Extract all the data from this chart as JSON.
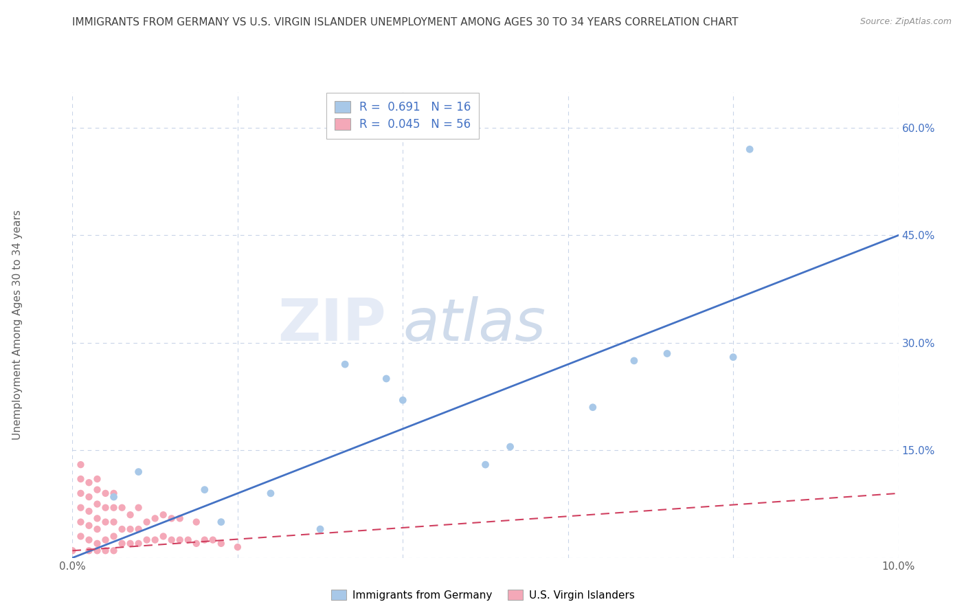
{
  "title": "IMMIGRANTS FROM GERMANY VS U.S. VIRGIN ISLANDER UNEMPLOYMENT AMONG AGES 30 TO 34 YEARS CORRELATION CHART",
  "source": "Source: ZipAtlas.com",
  "ylabel": "Unemployment Among Ages 30 to 34 years",
  "xlim": [
    0.0,
    0.1
  ],
  "ylim": [
    0.0,
    0.65
  ],
  "xticks": [
    0.0,
    0.02,
    0.04,
    0.06,
    0.08,
    0.1
  ],
  "ytick_positions": [
    0.0,
    0.15,
    0.3,
    0.45,
    0.6
  ],
  "yticklabels_right": [
    "",
    "15.0%",
    "30.0%",
    "45.0%",
    "60.0%"
  ],
  "R_blue": 0.691,
  "N_blue": 16,
  "R_pink": 0.045,
  "N_pink": 56,
  "blue_scatter_x": [
    0.005,
    0.008,
    0.016,
    0.018,
    0.024,
    0.03,
    0.033,
    0.038,
    0.04,
    0.05,
    0.053,
    0.063,
    0.068,
    0.072,
    0.08,
    0.082
  ],
  "blue_scatter_y": [
    0.085,
    0.12,
    0.095,
    0.05,
    0.09,
    0.04,
    0.27,
    0.25,
    0.22,
    0.13,
    0.155,
    0.21,
    0.275,
    0.285,
    0.28,
    0.57
  ],
  "pink_scatter_x": [
    0.0,
    0.001,
    0.001,
    0.001,
    0.001,
    0.001,
    0.001,
    0.002,
    0.002,
    0.002,
    0.002,
    0.002,
    0.002,
    0.003,
    0.003,
    0.003,
    0.003,
    0.003,
    0.003,
    0.003,
    0.004,
    0.004,
    0.004,
    0.004,
    0.004,
    0.005,
    0.005,
    0.005,
    0.005,
    0.005,
    0.006,
    0.006,
    0.006,
    0.007,
    0.007,
    0.007,
    0.008,
    0.008,
    0.008,
    0.009,
    0.009,
    0.01,
    0.01,
    0.011,
    0.011,
    0.012,
    0.012,
    0.013,
    0.013,
    0.014,
    0.015,
    0.015,
    0.016,
    0.017,
    0.018,
    0.02
  ],
  "pink_scatter_y": [
    0.01,
    0.03,
    0.05,
    0.07,
    0.09,
    0.11,
    0.13,
    0.01,
    0.025,
    0.045,
    0.065,
    0.085,
    0.105,
    0.01,
    0.02,
    0.04,
    0.055,
    0.075,
    0.095,
    0.11,
    0.01,
    0.025,
    0.05,
    0.07,
    0.09,
    0.01,
    0.03,
    0.05,
    0.07,
    0.09,
    0.02,
    0.04,
    0.07,
    0.02,
    0.04,
    0.06,
    0.02,
    0.04,
    0.07,
    0.025,
    0.05,
    0.025,
    0.055,
    0.03,
    0.06,
    0.025,
    0.055,
    0.025,
    0.055,
    0.025,
    0.02,
    0.05,
    0.025,
    0.025,
    0.02,
    0.015
  ],
  "blue_line_x": [
    0.0,
    0.1
  ],
  "blue_line_y": [
    0.0,
    0.45
  ],
  "pink_line_x": [
    0.0,
    0.1
  ],
  "pink_line_y": [
    0.01,
    0.09
  ],
  "blue_color": "#a8c8e8",
  "pink_color": "#f4a8b8",
  "blue_line_color": "#4472c4",
  "pink_line_color": "#d04060",
  "legend_text_color": "#4472c4",
  "watermark": "ZIPatlas",
  "background_color": "#ffffff",
  "grid_color": "#c8d4e8",
  "title_color": "#404040",
  "source_color": "#909090"
}
